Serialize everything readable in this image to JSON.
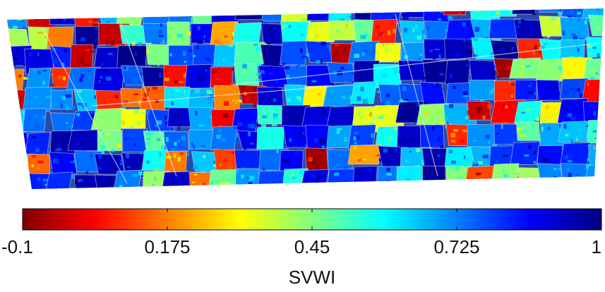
{
  "colorbar": {
    "label": "SVWI",
    "lim": [
      -0.1,
      1
    ],
    "ticks": [
      -0.1,
      0.175,
      0.45,
      0.725,
      1
    ]
  }
}
